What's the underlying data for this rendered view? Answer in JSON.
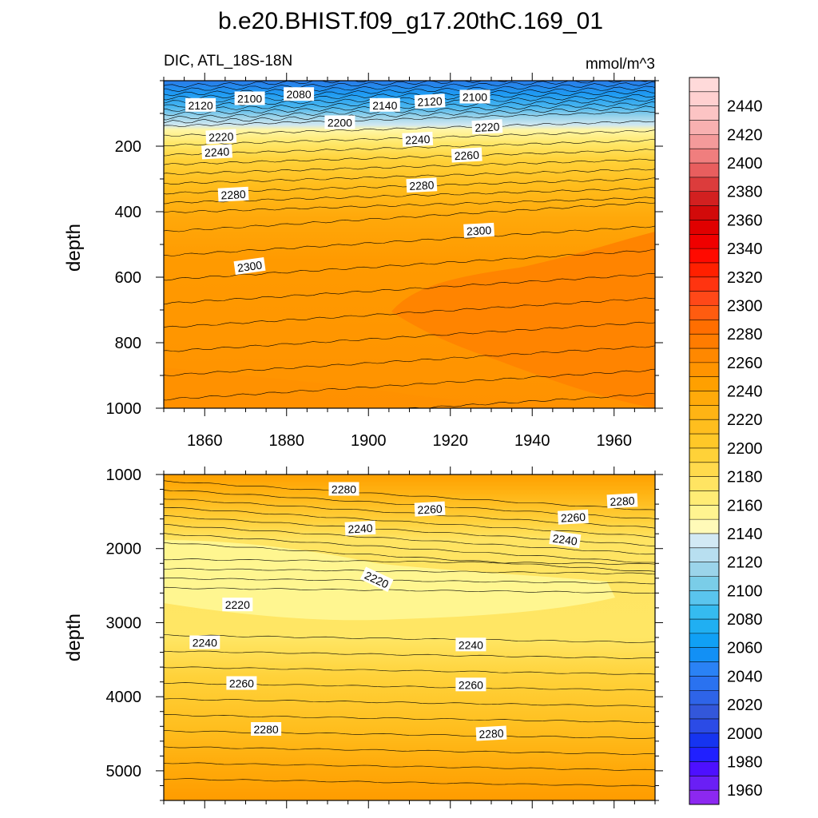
{
  "chart_data": {
    "type": "heatmap",
    "title": "b.e20.BHIST.f09_g17.20thC.169_01",
    "subtitle_left": "DIC, ATL_18S-18N",
    "subtitle_right": "mmol/m^3",
    "x": {
      "label": "",
      "range": [
        1850,
        1970
      ],
      "ticks": [
        1860,
        1880,
        1900,
        1920,
        1940,
        1960
      ],
      "tick_labels": [
        "1860",
        "1880",
        "1900",
        "1920",
        "1940",
        "1960"
      ]
    },
    "panels": [
      {
        "name": "upper",
        "ylabel": "depth",
        "ylim": [
          0,
          1000
        ],
        "yticks": [
          200,
          400,
          600,
          800,
          1000
        ],
        "ytick_labels": [
          "200",
          "400",
          "600",
          "800",
          "1000"
        ],
        "contour_labels": [
          {
            "text": "2120",
            "x": 1859,
            "y": 75,
            "rot": 0
          },
          {
            "text": "2100",
            "x": 1871,
            "y": 55,
            "rot": 0
          },
          {
            "text": "2080",
            "x": 1883,
            "y": 42,
            "rot": 0
          },
          {
            "text": "2140",
            "x": 1904,
            "y": 75,
            "rot": 0
          },
          {
            "text": "2120",
            "x": 1915,
            "y": 64,
            "rot": -3
          },
          {
            "text": "2100",
            "x": 1926,
            "y": 50,
            "rot": 0
          },
          {
            "text": "2200",
            "x": 1893,
            "y": 128,
            "rot": 0
          },
          {
            "text": "2220",
            "x": 1864,
            "y": 172,
            "rot": -3
          },
          {
            "text": "2220",
            "x": 1929,
            "y": 142,
            "rot": -3
          },
          {
            "text": "2240",
            "x": 1863,
            "y": 218,
            "rot": -3
          },
          {
            "text": "2240",
            "x": 1912,
            "y": 180,
            "rot": -3
          },
          {
            "text": "2260",
            "x": 1924,
            "y": 228,
            "rot": -3
          },
          {
            "text": "2280",
            "x": 1867,
            "y": 348,
            "rot": -3
          },
          {
            "text": "2280",
            "x": 1913,
            "y": 320,
            "rot": -3
          },
          {
            "text": "2300",
            "x": 1871,
            "y": 567,
            "rot": -8
          },
          {
            "text": "2300",
            "x": 1927,
            "y": 458,
            "rot": -3
          }
        ]
      },
      {
        "name": "lower",
        "ylabel": "depth",
        "ylim": [
          1000,
          5400
        ],
        "yticks": [
          1000,
          2000,
          3000,
          4000,
          5000
        ],
        "ytick_labels": [
          "1000",
          "2000",
          "3000",
          "4000",
          "5000"
        ],
        "contour_labels": [
          {
            "text": "2280",
            "x": 1894,
            "y": 1200,
            "rot": 0
          },
          {
            "text": "2260",
            "x": 1915,
            "y": 1470,
            "rot": -3
          },
          {
            "text": "2280",
            "x": 1962,
            "y": 1360,
            "rot": -3
          },
          {
            "text": "2260",
            "x": 1950,
            "y": 1580,
            "rot": -3
          },
          {
            "text": "2240",
            "x": 1898,
            "y": 1730,
            "rot": -3
          },
          {
            "text": "2240",
            "x": 1948,
            "y": 1880,
            "rot": 8
          },
          {
            "text": "2220",
            "x": 1902,
            "y": 2420,
            "rot": 25
          },
          {
            "text": "2220",
            "x": 1868,
            "y": 2760,
            "rot": 0
          },
          {
            "text": "2240",
            "x": 1860,
            "y": 3270,
            "rot": 0
          },
          {
            "text": "2240",
            "x": 1925,
            "y": 3300,
            "rot": 0
          },
          {
            "text": "2260",
            "x": 1869,
            "y": 3820,
            "rot": 0
          },
          {
            "text": "2260",
            "x": 1925,
            "y": 3840,
            "rot": 0
          },
          {
            "text": "2280",
            "x": 1875,
            "y": 4440,
            "rot": 0
          },
          {
            "text": "2280",
            "x": 1930,
            "y": 4500,
            "rot": -3
          }
        ]
      }
    ],
    "colorbar": {
      "min": 1950,
      "max": 2460,
      "step": 10,
      "tick_labels": [
        "2440",
        "2420",
        "2400",
        "2380",
        "2360",
        "2340",
        "2320",
        "2300",
        "2280",
        "2260",
        "2240",
        "2220",
        "2200",
        "2180",
        "2160",
        "2140",
        "2120",
        "2100",
        "2080",
        "2060",
        "2040",
        "2020",
        "2000",
        "1980",
        "1960"
      ],
      "colors": [
        "#8c28f0",
        "#6a1ff5",
        "#4d10ff",
        "#2020ff",
        "#1634f0",
        "#2b4be6",
        "#3357da",
        "#2e64e8",
        "#2a72f0",
        "#2a82f5",
        "#1290f5",
        "#10a0f5",
        "#20aff2",
        "#35bbf0",
        "#5ac5ee",
        "#7acde8",
        "#9bd4ea",
        "#b8dff0",
        "#d2e9f4",
        "#fffab8",
        "#fff490",
        "#ffec75",
        "#ffe462",
        "#ffda4c",
        "#ffd238",
        "#ffc828",
        "#ffbe1e",
        "#ffb414",
        "#ffaa0a",
        "#ffa000",
        "#ff9400",
        "#ff8800",
        "#ff7c00",
        "#ff6e00",
        "#ff5c10",
        "#ff4818",
        "#ff3410",
        "#ff2000",
        "#ff0a00",
        "#f00000",
        "#e00000",
        "#d20a0a",
        "#d22020",
        "#dc3c3c",
        "#e85e5e",
        "#f07e7e",
        "#f49a9a",
        "#f8b0b0",
        "#fcc4c4",
        "#ffd0d0",
        "#ffdada"
      ]
    }
  }
}
